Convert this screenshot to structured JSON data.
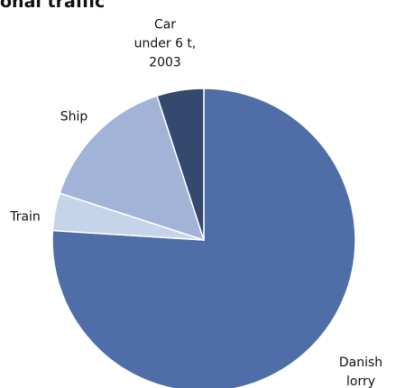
{
  "chart_data": {
    "type": "pie",
    "title": "onal traffic",
    "categories": [
      "Danish lorry",
      "Train",
      "Ship",
      "Car\nunder 6 t,\n2003"
    ],
    "values": [
      76,
      4,
      15,
      5
    ],
    "colors": [
      "#4f6ea8",
      "#c6d4e9",
      "#a1b3d7",
      "#35486e"
    ]
  }
}
